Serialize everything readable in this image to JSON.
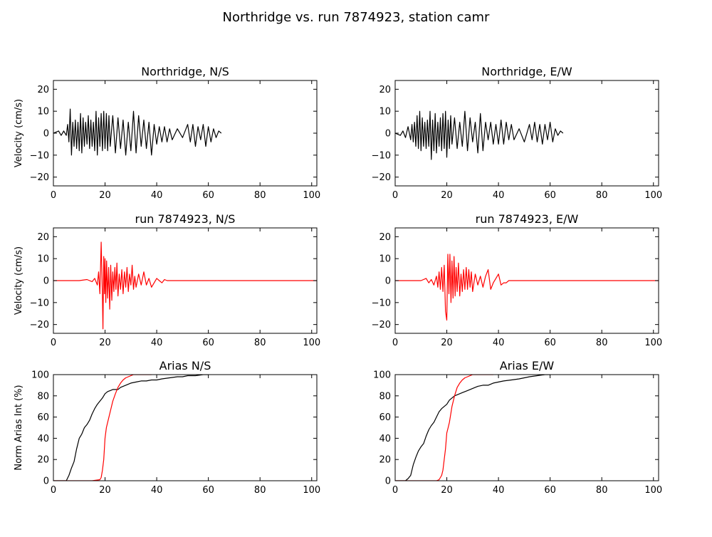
{
  "figure_title": "Northridge vs. run 7874923, station camr",
  "chart_data": [
    {
      "type": "line",
      "title": "Northridge, N/S",
      "xlabel": "",
      "ylabel": "Velocity (cm/s)",
      "xlim": [
        0,
        102
      ],
      "ylim": [
        -24,
        24
      ],
      "xticks": [
        0,
        20,
        40,
        60,
        80,
        100
      ],
      "yticks": [
        -20,
        -10,
        0,
        10,
        20
      ],
      "series": [
        {
          "color": "#000000",
          "x": [
            0,
            2,
            3,
            4,
            5,
            5.5,
            6,
            6.5,
            7,
            7.5,
            8,
            8.5,
            9,
            9.5,
            10,
            10.5,
            11,
            11.5,
            12,
            12.5,
            13,
            13.5,
            14,
            14.5,
            15,
            15.5,
            16,
            16.5,
            17,
            17.5,
            18,
            18.5,
            19,
            19.5,
            20,
            20.5,
            21,
            21.5,
            22,
            23,
            24,
            25,
            26,
            27,
            28,
            29,
            30,
            31,
            32,
            33,
            34,
            35,
            36,
            37,
            38,
            39,
            40,
            41,
            42,
            43,
            44,
            45,
            46,
            48,
            50,
            52,
            53,
            54,
            55,
            56,
            57,
            58,
            59,
            60,
            61,
            62,
            63,
            64,
            65
          ],
          "y": [
            0,
            1,
            -1,
            1,
            -1,
            4,
            -4,
            11,
            -10,
            5,
            -6,
            6,
            -7,
            5,
            -8,
            9,
            -9,
            7,
            -6,
            5,
            -5,
            8,
            -7,
            6,
            -6,
            5,
            -8,
            10,
            -10,
            7,
            -6,
            9,
            -8,
            10,
            -7,
            9,
            -8,
            8,
            -6,
            8,
            -9,
            7,
            -7,
            6,
            -10,
            5,
            -8,
            10,
            -9,
            8,
            -6,
            6,
            -7,
            5,
            -10,
            4,
            -5,
            3,
            -4,
            3,
            -4,
            2,
            -3,
            2,
            -2,
            4,
            -4,
            4,
            -6,
            3,
            -3,
            4,
            -6,
            3,
            -4,
            2,
            -2,
            1,
            0
          ]
        }
      ]
    },
    {
      "type": "line",
      "title": "Northridge, E/W",
      "xlabel": "",
      "ylabel": "",
      "xlim": [
        0,
        102
      ],
      "ylim": [
        -24,
        24
      ],
      "xticks": [
        0,
        20,
        40,
        60,
        80,
        100
      ],
      "yticks": [
        -20,
        -10,
        0,
        10,
        20
      ],
      "series": [
        {
          "color": "#000000",
          "x": [
            0,
            2,
            3,
            4,
            5,
            6,
            6.5,
            7,
            7.5,
            8,
            8.5,
            9,
            9.5,
            10,
            10.5,
            11,
            11.5,
            12,
            12.5,
            13,
            13.5,
            14,
            14.5,
            15,
            15.5,
            16,
            16.5,
            17,
            17.5,
            18,
            18.5,
            19,
            19.5,
            20,
            20.5,
            21,
            21.5,
            22,
            23,
            24,
            25,
            26,
            27,
            28,
            29,
            30,
            31,
            32,
            33,
            34,
            35,
            36,
            37,
            38,
            39,
            40,
            41,
            42,
            43,
            44,
            45,
            46,
            48,
            50,
            52,
            53,
            54,
            55,
            56,
            57,
            58,
            59,
            60,
            61,
            62,
            63,
            64,
            65
          ],
          "y": [
            0,
            -1,
            1,
            -2,
            3,
            -3,
            4,
            -4,
            5,
            -6,
            8,
            -7,
            10,
            -8,
            7,
            -6,
            5,
            -7,
            6,
            -6,
            10,
            -12,
            6,
            -8,
            9,
            -9,
            5,
            -6,
            7,
            -8,
            9,
            -7,
            10,
            -11,
            6,
            -7,
            8,
            -5,
            7,
            -7,
            5,
            -6,
            10,
            -8,
            7,
            -4,
            5,
            -9,
            9,
            -8,
            5,
            -3,
            5,
            -5,
            4,
            -5,
            6,
            -5,
            5,
            -3,
            4,
            -3,
            2,
            -4,
            4,
            -3,
            5,
            -4,
            4,
            -5,
            4,
            -3,
            5,
            -4,
            2,
            -1,
            1,
            0
          ]
        }
      ]
    },
    {
      "type": "line",
      "title": "run 7874923, N/S",
      "xlabel": "",
      "ylabel": "Velocity (cm/s)",
      "xlim": [
        0,
        102
      ],
      "ylim": [
        -24,
        24
      ],
      "xticks": [
        0,
        20,
        40,
        60,
        80,
        100
      ],
      "yticks": [
        -20,
        -10,
        0,
        10,
        20
      ],
      "series": [
        {
          "color": "#ff0000",
          "x": [
            0,
            10,
            13,
            14,
            15,
            16,
            17,
            17.5,
            18,
            18.5,
            19,
            19.2,
            19.5,
            19.8,
            20,
            20.3,
            20.6,
            21,
            21.4,
            21.8,
            22.2,
            22.6,
            23,
            23.4,
            23.8,
            24.2,
            24.6,
            25,
            25.5,
            26,
            26.5,
            27,
            27.5,
            28,
            28.5,
            29,
            29.5,
            30,
            30.5,
            31,
            31.5,
            32,
            33,
            34,
            35,
            36,
            37,
            38,
            39,
            40,
            41,
            42,
            43,
            44,
            46,
            50,
            60,
            80,
            102
          ],
          "y": [
            0,
            0,
            0.5,
            0,
            -0.5,
            1,
            -2,
            4,
            -6,
            17.5,
            -8,
            -22,
            11,
            -6,
            10,
            -10,
            9,
            -8,
            6,
            -13,
            7,
            -9,
            4,
            -5,
            6,
            -4,
            8,
            -7,
            3,
            -4,
            5,
            -6,
            4,
            -3,
            6,
            -5,
            3,
            -2,
            7,
            -4,
            2,
            -3,
            3,
            -2,
            4,
            -2,
            1,
            -3,
            -1,
            1,
            0,
            -1,
            0.5,
            0,
            0,
            0,
            0,
            0,
            0
          ]
        }
      ]
    },
    {
      "type": "line",
      "title": "run 7874923, E/W",
      "xlabel": "",
      "ylabel": "",
      "xlim": [
        0,
        102
      ],
      "ylim": [
        -24,
        24
      ],
      "xticks": [
        0,
        20,
        40,
        60,
        80,
        100
      ],
      "yticks": [
        -20,
        -10,
        0,
        10,
        20
      ],
      "series": [
        {
          "color": "#ff0000",
          "x": [
            0,
            10,
            12,
            13,
            14,
            15,
            16,
            16.5,
            17,
            17.5,
            18,
            18.5,
            19,
            19.5,
            20,
            20.4,
            20.8,
            21.2,
            21.6,
            22,
            22.4,
            22.8,
            23.2,
            23.6,
            24,
            24.5,
            25,
            25.5,
            26,
            26.5,
            27,
            27.5,
            28,
            28.5,
            29,
            29.5,
            30,
            31,
            32,
            33,
            34,
            35,
            36,
            37,
            38,
            39,
            40,
            41,
            42,
            43,
            44,
            46,
            50,
            60,
            80,
            102
          ],
          "y": [
            0,
            0,
            1,
            -1,
            0.5,
            -2,
            2,
            -3,
            4,
            -4,
            6,
            -5,
            7,
            -14,
            -18,
            12,
            -6,
            12,
            -10,
            9,
            -8,
            11,
            -7,
            6,
            -5,
            8,
            -7,
            3,
            -5,
            5,
            -4,
            6,
            -4,
            5,
            -3,
            4,
            -5,
            3,
            -2,
            2,
            -3,
            2,
            5,
            -4,
            -1,
            1,
            3,
            -2,
            -1,
            -1,
            0,
            0,
            0,
            0,
            0,
            0
          ]
        }
      ]
    },
    {
      "type": "line",
      "title": "Arias N/S",
      "xlabel": "",
      "ylabel": "Norm Arias Int (%)",
      "xlim": [
        0,
        102
      ],
      "ylim": [
        0,
        100
      ],
      "xticks": [
        0,
        20,
        40,
        60,
        80,
        100
      ],
      "yticks": [
        0,
        20,
        40,
        60,
        80,
        100
      ],
      "series": [
        {
          "color": "#000000",
          "x": [
            0,
            5,
            6,
            7,
            8,
            9,
            10,
            11,
            12,
            13,
            14,
            15,
            16,
            17,
            18,
            19,
            20,
            21,
            22,
            23,
            24,
            25,
            26,
            28,
            30,
            32,
            34,
            36,
            38,
            40,
            42,
            45,
            48,
            50,
            52,
            55,
            58,
            60
          ],
          "y": [
            0,
            0,
            5,
            12,
            18,
            30,
            40,
            44,
            50,
            53,
            57,
            63,
            68,
            72,
            75,
            78,
            82,
            84,
            85,
            86,
            86,
            86,
            88,
            90,
            92,
            93,
            94,
            94,
            95,
            95,
            96,
            97,
            98,
            98,
            99,
            99,
            100,
            100
          ]
        },
        {
          "color": "#ff0000",
          "x": [
            0,
            15,
            18,
            18.5,
            19,
            19.5,
            20,
            20.5,
            21,
            22,
            23,
            24,
            25,
            26,
            27,
            28,
            29,
            30,
            31,
            32,
            34,
            36,
            38
          ],
          "y": [
            0,
            0,
            1,
            3,
            10,
            20,
            40,
            50,
            55,
            65,
            75,
            82,
            88,
            92,
            95,
            97,
            98,
            99,
            100,
            100,
            100,
            100,
            100
          ]
        }
      ]
    },
    {
      "type": "line",
      "title": "Arias E/W",
      "xlabel": "",
      "ylabel": "",
      "xlim": [
        0,
        102
      ],
      "ylim": [
        0,
        100
      ],
      "xticks": [
        0,
        20,
        40,
        60,
        80,
        100
      ],
      "yticks": [
        0,
        20,
        40,
        60,
        80,
        100
      ],
      "series": [
        {
          "color": "#000000",
          "x": [
            0,
            4,
            5,
            6,
            7,
            8,
            9,
            10,
            11,
            12,
            13,
            14,
            15,
            16,
            17,
            18,
            19,
            20,
            21,
            22,
            23,
            24,
            26,
            28,
            30,
            32,
            34,
            36,
            38,
            40,
            42,
            45,
            48,
            50,
            52,
            55,
            58,
            60
          ],
          "y": [
            0,
            0,
            2,
            5,
            15,
            22,
            28,
            32,
            35,
            42,
            48,
            52,
            55,
            60,
            65,
            68,
            70,
            72,
            76,
            78,
            80,
            81,
            83,
            85,
            87,
            89,
            90,
            90,
            92,
            93,
            94,
            95,
            96,
            97,
            98,
            99,
            100,
            100
          ]
        },
        {
          "color": "#ff0000",
          "x": [
            0,
            16,
            17,
            18,
            18.5,
            19,
            19.5,
            20,
            20.5,
            21,
            22,
            23,
            24,
            25,
            26,
            27,
            28,
            29,
            30,
            32,
            34,
            36,
            38
          ],
          "y": [
            0,
            0,
            1,
            5,
            10,
            20,
            30,
            45,
            50,
            55,
            70,
            80,
            88,
            92,
            95,
            97,
            98,
            99,
            100,
            100,
            100,
            100,
            100
          ]
        }
      ]
    }
  ]
}
